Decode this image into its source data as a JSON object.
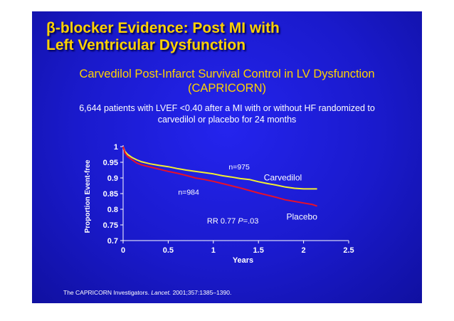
{
  "slide": {
    "title_symbol": "β",
    "title_line1": "-blocker Evidence: Post MI with",
    "title_line2": "Left Ventricular Dysfunction",
    "subtitle_line1": "Carvedilol Post-Infarct Survival Control in LV Dysfunction",
    "subtitle_line2": "(CAPRICORN)",
    "desc_line1": "6,644 patients with LVEF <0.40 after a MI with or without HF randomized to",
    "desc_line2": "carvedilol or placebo for 24 months",
    "citation_pre": "The CAPRICORN Investigators.",
    "citation_journal": "Lancet.",
    "citation_post": "2001;357:1385–1390."
  },
  "chart_data": {
    "type": "line",
    "xlabel": "Years",
    "ylabel": "Proportion Event-free",
    "xlim": [
      0,
      2.5
    ],
    "ylim": [
      0.7,
      1
    ],
    "xticks": [
      "0",
      "0.5",
      "1",
      "1.5",
      "2",
      "2.5"
    ],
    "yticks": [
      "1",
      "0.95",
      "0.9",
      "0.85",
      "0.8",
      "0.75",
      "0.7"
    ],
    "colors": {
      "carvedilol": "#f4ef30",
      "placebo": "#e8102a",
      "axis": "#ffffff",
      "label_text": "#ffffff"
    },
    "series": [
      {
        "name": "Carvedilol",
        "n_label": "n=975",
        "x": [
          0,
          0.02,
          0.05,
          0.1,
          0.15,
          0.2,
          0.3,
          0.4,
          0.5,
          0.6,
          0.7,
          0.8,
          0.9,
          1.0,
          1.1,
          1.2,
          1.3,
          1.4,
          1.5,
          1.6,
          1.7,
          1.8,
          1.9,
          2.0,
          2.15
        ],
        "values": [
          1.0,
          0.985,
          0.975,
          0.965,
          0.958,
          0.952,
          0.945,
          0.94,
          0.936,
          0.93,
          0.925,
          0.921,
          0.917,
          0.913,
          0.907,
          0.903,
          0.898,
          0.895,
          0.888,
          0.882,
          0.877,
          0.871,
          0.867,
          0.865,
          0.865
        ]
      },
      {
        "name": "Placebo",
        "n_label": "n=984",
        "x": [
          0,
          0.02,
          0.05,
          0.1,
          0.15,
          0.2,
          0.3,
          0.4,
          0.5,
          0.6,
          0.7,
          0.8,
          0.9,
          1.0,
          1.1,
          1.2,
          1.3,
          1.4,
          1.5,
          1.6,
          1.7,
          1.8,
          1.9,
          2.0,
          2.1,
          2.15
        ],
        "values": [
          1.0,
          0.98,
          0.968,
          0.958,
          0.948,
          0.942,
          0.935,
          0.928,
          0.921,
          0.915,
          0.908,
          0.9,
          0.895,
          0.889,
          0.882,
          0.875,
          0.868,
          0.86,
          0.852,
          0.845,
          0.838,
          0.83,
          0.825,
          0.82,
          0.815,
          0.81
        ]
      }
    ],
    "annotation": {
      "prefix": "RR 0.77",
      "p_label": "P",
      "p_value": "=.03"
    },
    "grid": false,
    "legend": "inline labels"
  }
}
